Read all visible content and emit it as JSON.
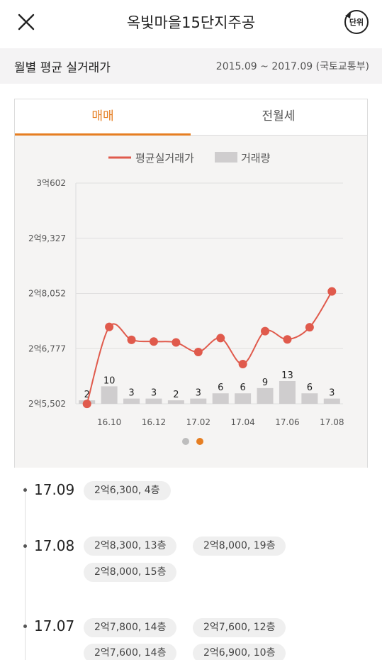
{
  "header": {
    "title": "옥빛마을15단지주공",
    "unit_label": "단위"
  },
  "subheader": {
    "label": "월별 평균 실거래가",
    "range": "2015.09 ~ 2017.09 (국토교통부)"
  },
  "tabs": [
    {
      "label": "매매",
      "active": true
    },
    {
      "label": "전월세",
      "active": false
    }
  ],
  "colors": {
    "accent": "#e67e22",
    "line": "#e05a4c",
    "bar": "#cfcdce"
  },
  "chart_data": {
    "type": "line+bar",
    "legend": [
      {
        "label": "평균실거래가",
        "kind": "line"
      },
      {
        "label": "거래량",
        "kind": "bar"
      }
    ],
    "legend_position": "top-center",
    "y_ticks": [
      "3억602",
      "2억9,327",
      "2억8,052",
      "2억6,777",
      "2억5,502"
    ],
    "y_tick_values": [
      30602,
      29327,
      28052,
      26777,
      25502
    ],
    "ylim": [
      25502,
      30602
    ],
    "x_tick_labels": [
      "16.10",
      "16.12",
      "17.02",
      "17.04",
      "17.06",
      "17.08"
    ],
    "months": [
      "16.09",
      "16.10",
      "16.11",
      "16.12",
      "17.01",
      "17.02",
      "17.03",
      "17.04",
      "17.05",
      "17.06",
      "17.07",
      "17.08"
    ],
    "price": [
      25500,
      27280,
      26980,
      26940,
      26920,
      26700,
      27020,
      26420,
      27180,
      26990,
      27270,
      28100
    ],
    "volume": [
      2,
      10,
      3,
      3,
      2,
      3,
      6,
      6,
      9,
      13,
      6,
      3
    ],
    "grid": true
  },
  "pager": {
    "pages": 2,
    "active": 1
  },
  "timeline": [
    {
      "month": "17.09",
      "deals": [
        "2억6,300, 4층"
      ]
    },
    {
      "month": "17.08",
      "deals": [
        "2억8,300, 13층",
        "2억8,000, 19층",
        "2억8,000, 15층"
      ]
    },
    {
      "month": "17.07",
      "deals": [
        "2억7,800, 14층",
        "2억7,600, 12층",
        "2억7,600, 14층",
        "2억6,900, 10층"
      ]
    }
  ]
}
